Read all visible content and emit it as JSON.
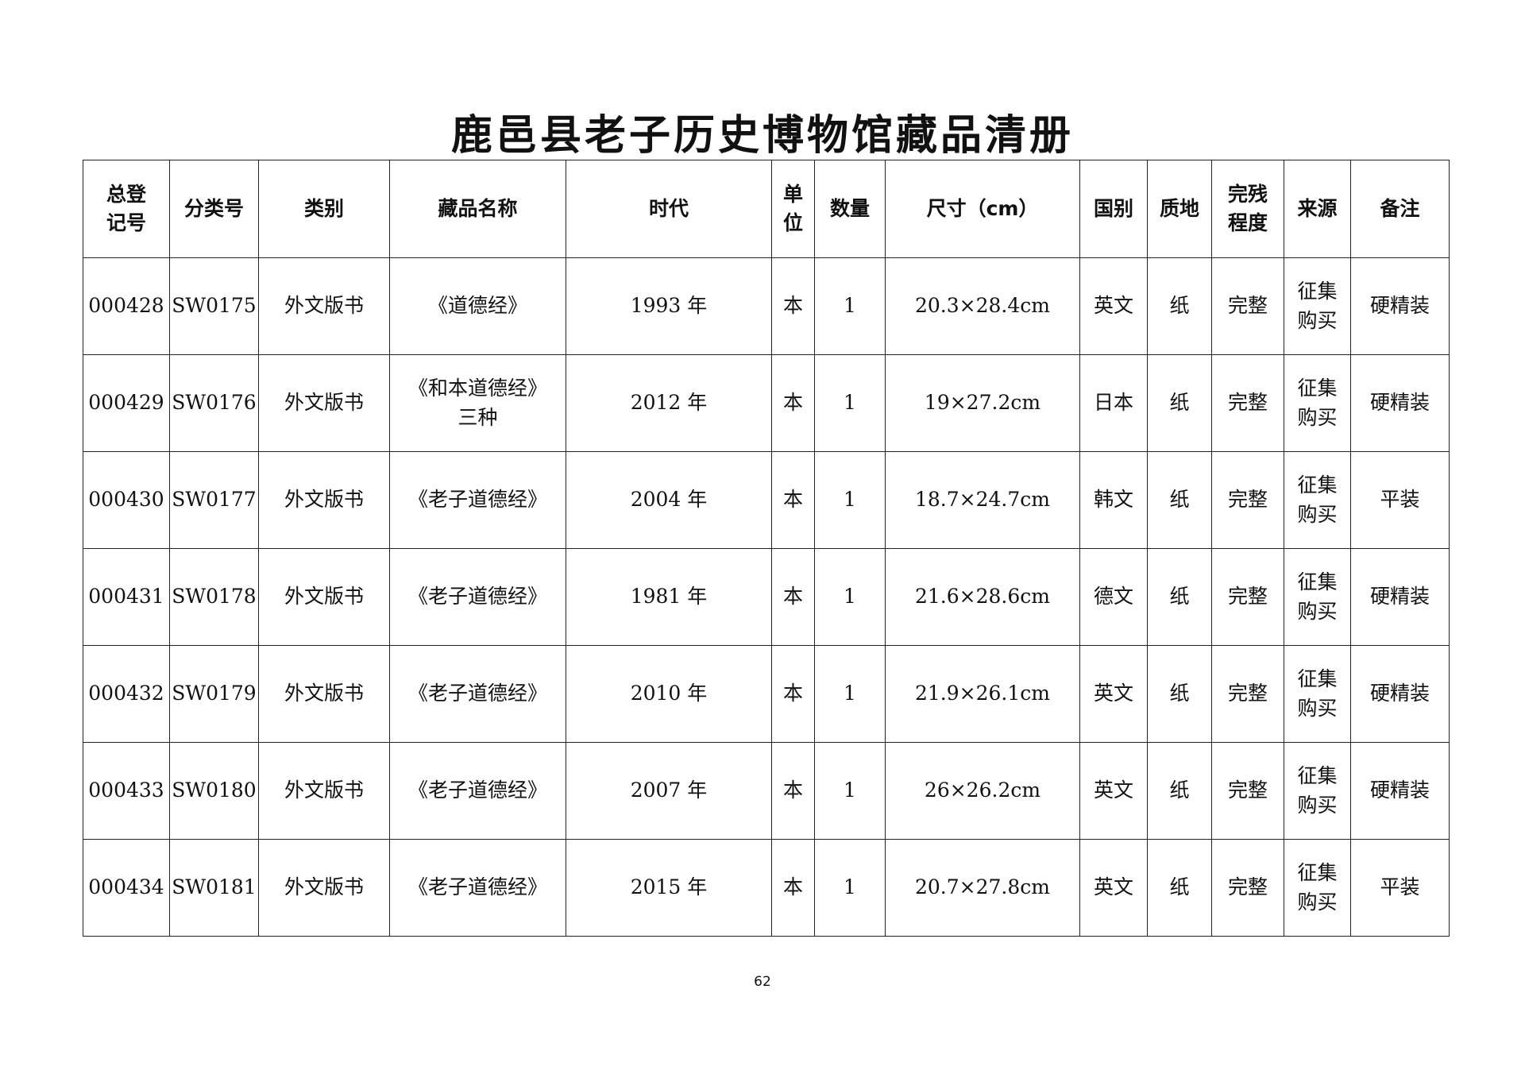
{
  "title": "鹿邑县老子历史博物馆藏品清册",
  "columns": [
    "总登\n记号",
    "分类号",
    "类别",
    "藏品名称",
    "时代",
    "单\n位",
    "数量",
    "尺寸（cm）",
    "国别",
    "质地",
    "完残\n程度",
    "来源",
    "备注"
  ],
  "rows": [
    [
      "000428",
      "SW0175",
      "外文版书",
      "《道德经》",
      "1993 年",
      "本",
      "1",
      "20.3×28.4cm",
      "英文",
      "纸",
      "完整",
      "征集\n购买",
      "硬精装"
    ],
    [
      "000429",
      "SW0176",
      "外文版书",
      "《和本道德经》\n三种",
      "2012 年",
      "本",
      "1",
      "19×27.2cm",
      "日本",
      "纸",
      "完整",
      "征集\n购买",
      "硬精装"
    ],
    [
      "000430",
      "SW0177",
      "外文版书",
      "《老子道德经》",
      "2004 年",
      "本",
      "1",
      "18.7×24.7cm",
      "韩文",
      "纸",
      "完整",
      "征集\n购买",
      "平装"
    ],
    [
      "000431",
      "SW0178",
      "外文版书",
      "《老子道德经》",
      "1981 年",
      "本",
      "1",
      "21.6×28.6cm",
      "德文",
      "纸",
      "完整",
      "征集\n购买",
      "硬精装"
    ],
    [
      "000432",
      "SW0179",
      "外文版书",
      "《老子道德经》",
      "2010 年",
      "本",
      "1",
      "21.9×26.1cm",
      "英文",
      "纸",
      "完整",
      "征集\n购买",
      "硬精装"
    ],
    [
      "000433",
      "SW0180",
      "外文版书",
      "《老子道德经》",
      "2007 年",
      "本",
      "1",
      "26×26.2cm",
      "英文",
      "纸",
      "完整",
      "征集\n购买",
      "硬精装"
    ],
    [
      "000434",
      "SW0181",
      "外文版书",
      "《老子道德经》",
      "2015 年",
      "本",
      "1",
      "20.7×27.8cm",
      "英文",
      "纸",
      "完整",
      "征集\n购买",
      "平装"
    ]
  ],
  "page_number": "62"
}
